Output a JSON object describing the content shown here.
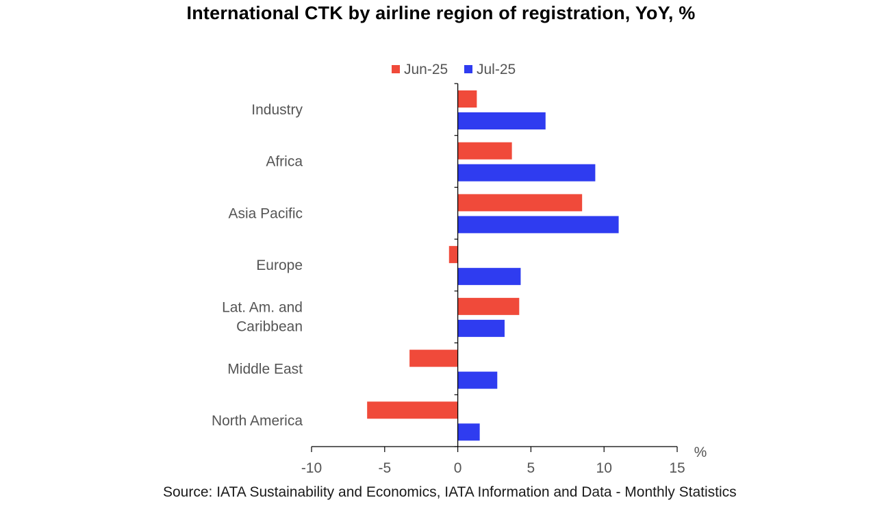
{
  "chart_data": {
    "type": "bar",
    "orientation": "horizontal",
    "title": "International CTK by airline region of registration, YoY, %",
    "categories": [
      [
        "Industry"
      ],
      [
        "Africa"
      ],
      [
        "Asia Pacific"
      ],
      [
        "Europe"
      ],
      [
        "Lat. Am. and",
        "Caribbean"
      ],
      [
        "Middle East"
      ],
      [
        "North America"
      ]
    ],
    "series": [
      {
        "name": "Jun-25",
        "color": "#f04a3a",
        "values": [
          1.3,
          3.7,
          8.5,
          -0.6,
          4.2,
          -3.3,
          -6.2
        ]
      },
      {
        "name": "Jul-25",
        "color": "#2f3cf0",
        "values": [
          6.0,
          9.4,
          11.0,
          4.3,
          3.2,
          2.7,
          1.5
        ]
      }
    ],
    "xlim": [
      -10,
      15
    ],
    "xticks": [
      "-10",
      "-5",
      "0",
      "5",
      "10",
      "15"
    ],
    "xticks_values": [
      -10,
      -5,
      0,
      5,
      10,
      15
    ],
    "xunit": "%",
    "legend_position": "top"
  },
  "source": "Source: IATA Sustainability and Economics, IATA Information and Data - Monthly Statistics"
}
